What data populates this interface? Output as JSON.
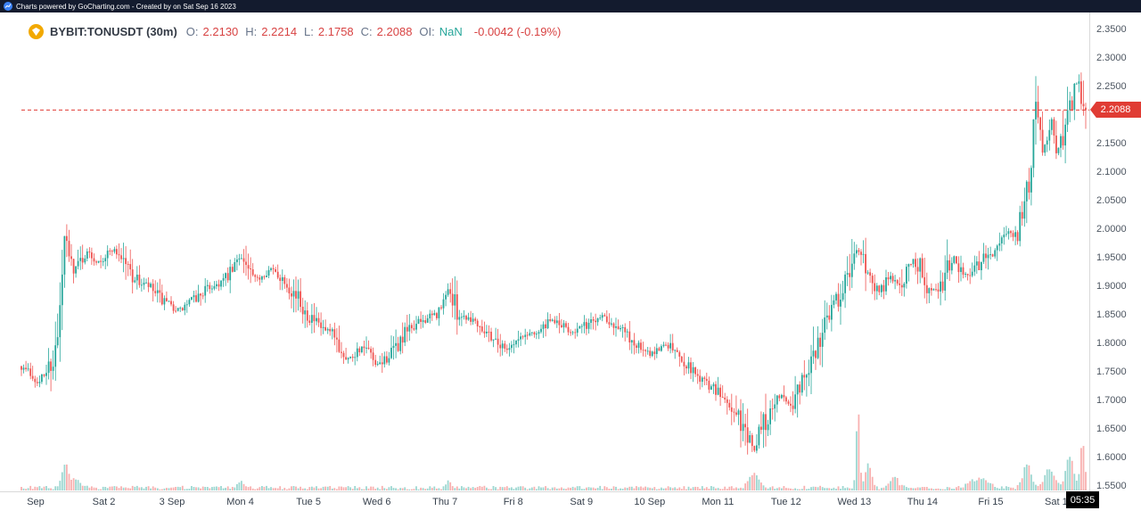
{
  "topbar": {
    "text": "Charts powered by GoCharting.com - Created by  on Sat Sep 16 2023",
    "bg": "#131b2e",
    "logo_color": "#3b82f6"
  },
  "header": {
    "symbol": "BYBIT:TONUSDT (30m)",
    "symbol_color": "#333a45",
    "label_color": "#67748a",
    "value_color": "#d84343",
    "fields": [
      {
        "label": "O:",
        "value": "2.2130"
      },
      {
        "label": "H:",
        "value": "2.2214"
      },
      {
        "label": "L:",
        "value": "2.1758"
      },
      {
        "label": "C:",
        "value": "2.2088"
      },
      {
        "label": "OI:",
        "value": "NaN",
        "value_color": "#26a69a"
      }
    ],
    "change": "-0.0042  (-0.19%)",
    "change_color": "#d84343",
    "coin_bg": "#f2a900"
  },
  "price_line": {
    "value": "2.2088",
    "price": 2.2088,
    "color": "#e03c34",
    "tag_bg": "#e03c34",
    "tag_text": "#ffffff"
  },
  "countdown": {
    "text": "05:35",
    "bg": "#000000",
    "fg": "#ffffff"
  },
  "y_axis": {
    "min": 1.55,
    "max": 2.35,
    "step": 0.05,
    "labels": [
      "2.3500",
      "2.3000",
      "2.2500",
      "2.2000",
      "2.1500",
      "2.1000",
      "2.0500",
      "2.0000",
      "1.9500",
      "1.9000",
      "1.8500",
      "1.8000",
      "1.7500",
      "1.7000",
      "1.6500",
      "1.6000",
      "1.5500"
    ]
  },
  "x_axis": {
    "labels": [
      "Sep",
      "Sat 2",
      "3 Sep",
      "Mon 4",
      "Tue 5",
      "Wed 6",
      "Thu 7",
      "Fri 8",
      "Sat 9",
      "10 Sep",
      "Mon 11",
      "Tue 12",
      "Wed 13",
      "Thu 14",
      "Fri 15",
      "Sat 16"
    ]
  },
  "chart_data": {
    "type": "candlestick",
    "title": "BYBIT:TONUSDT (30m)",
    "symbol": "BYBIT:TONUSDT",
    "interval": "30m",
    "x_range": [
      "Sep 1 2023",
      "Sep 16 2023"
    ],
    "ylim": [
      1.55,
      2.35
    ],
    "grid": false,
    "up_color": "#26a69a",
    "down_color": "#ef5350",
    "current_ohlc": {
      "open": 2.213,
      "high": 2.2214,
      "low": 2.1758,
      "close": 2.2088,
      "oi": "NaN",
      "change": -0.0042,
      "change_pct": -0.19
    },
    "candle_count": 470,
    "seed": 7,
    "price_path": [
      [
        0.0,
        1.76
      ],
      [
        0.01,
        1.745
      ],
      [
        0.017,
        1.73
      ],
      [
        0.024,
        1.755
      ],
      [
        0.03,
        1.775
      ],
      [
        0.034,
        1.8
      ],
      [
        0.041,
        1.985
      ],
      [
        0.046,
        1.94
      ],
      [
        0.05,
        1.93
      ],
      [
        0.057,
        1.95
      ],
      [
        0.063,
        1.96
      ],
      [
        0.07,
        1.945
      ],
      [
        0.078,
        1.95
      ],
      [
        0.085,
        1.965
      ],
      [
        0.09,
        1.96
      ],
      [
        0.097,
        1.945
      ],
      [
        0.104,
        1.92
      ],
      [
        0.112,
        1.905
      ],
      [
        0.119,
        1.9
      ],
      [
        0.127,
        1.885
      ],
      [
        0.135,
        1.87
      ],
      [
        0.143,
        1.862
      ],
      [
        0.15,
        1.858
      ],
      [
        0.158,
        1.872
      ],
      [
        0.165,
        1.88
      ],
      [
        0.173,
        1.895
      ],
      [
        0.18,
        1.9
      ],
      [
        0.188,
        1.908
      ],
      [
        0.195,
        1.918
      ],
      [
        0.2,
        1.93
      ],
      [
        0.206,
        1.958
      ],
      [
        0.212,
        1.93
      ],
      [
        0.22,
        1.91
      ],
      [
        0.227,
        1.922
      ],
      [
        0.234,
        1.93
      ],
      [
        0.241,
        1.92
      ],
      [
        0.248,
        1.91
      ],
      [
        0.256,
        1.89
      ],
      [
        0.263,
        1.868
      ],
      [
        0.27,
        1.85
      ],
      [
        0.278,
        1.832
      ],
      [
        0.286,
        1.82
      ],
      [
        0.293,
        1.812
      ],
      [
        0.3,
        1.79
      ],
      [
        0.308,
        1.772
      ],
      [
        0.315,
        1.788
      ],
      [
        0.322,
        1.792
      ],
      [
        0.328,
        1.775
      ],
      [
        0.333,
        1.758
      ],
      [
        0.34,
        1.77
      ],
      [
        0.347,
        1.78
      ],
      [
        0.355,
        1.8
      ],
      [
        0.362,
        1.82
      ],
      [
        0.37,
        1.832
      ],
      [
        0.377,
        1.84
      ],
      [
        0.384,
        1.846
      ],
      [
        0.39,
        1.85
      ],
      [
        0.396,
        1.862
      ],
      [
        0.401,
        1.9
      ],
      [
        0.406,
        1.868
      ],
      [
        0.412,
        1.85
      ],
      [
        0.42,
        1.845
      ],
      [
        0.427,
        1.84
      ],
      [
        0.435,
        1.825
      ],
      [
        0.442,
        1.812
      ],
      [
        0.449,
        1.8
      ],
      [
        0.455,
        1.79
      ],
      [
        0.462,
        1.8
      ],
      [
        0.47,
        1.81
      ],
      [
        0.477,
        1.818
      ],
      [
        0.485,
        1.82
      ],
      [
        0.492,
        1.83
      ],
      [
        0.5,
        1.84
      ],
      [
        0.508,
        1.83
      ],
      [
        0.515,
        1.82
      ],
      [
        0.523,
        1.825
      ],
      [
        0.531,
        1.832
      ],
      [
        0.538,
        1.842
      ],
      [
        0.546,
        1.85
      ],
      [
        0.553,
        1.84
      ],
      [
        0.561,
        1.83
      ],
      [
        0.568,
        1.815
      ],
      [
        0.576,
        1.8
      ],
      [
        0.583,
        1.788
      ],
      [
        0.591,
        1.78
      ],
      [
        0.598,
        1.79
      ],
      [
        0.606,
        1.8
      ],
      [
        0.613,
        1.788
      ],
      [
        0.621,
        1.772
      ],
      [
        0.628,
        1.758
      ],
      [
        0.636,
        1.742
      ],
      [
        0.644,
        1.73
      ],
      [
        0.651,
        1.72
      ],
      [
        0.659,
        1.705
      ],
      [
        0.666,
        1.69
      ],
      [
        0.674,
        1.668
      ],
      [
        0.681,
        1.64
      ],
      [
        0.687,
        1.615
      ],
      [
        0.691,
        1.628
      ],
      [
        0.695,
        1.65
      ],
      [
        0.699,
        1.668
      ],
      [
        0.705,
        1.69
      ],
      [
        0.711,
        1.71
      ],
      [
        0.717,
        1.7
      ],
      [
        0.723,
        1.69
      ],
      [
        0.729,
        1.715
      ],
      [
        0.734,
        1.74
      ],
      [
        0.74,
        1.765
      ],
      [
        0.746,
        1.79
      ],
      [
        0.752,
        1.825
      ],
      [
        0.758,
        1.858
      ],
      [
        0.764,
        1.872
      ],
      [
        0.768,
        1.88
      ],
      [
        0.773,
        1.9
      ],
      [
        0.778,
        1.92
      ],
      [
        0.783,
        1.95
      ],
      [
        0.786,
        1.968
      ],
      [
        0.79,
        1.945
      ],
      [
        0.796,
        1.928
      ],
      [
        0.801,
        1.905
      ],
      [
        0.806,
        1.89
      ],
      [
        0.811,
        1.905
      ],
      [
        0.816,
        1.918
      ],
      [
        0.821,
        1.905
      ],
      [
        0.826,
        1.898
      ],
      [
        0.831,
        1.925
      ],
      [
        0.836,
        1.948
      ],
      [
        0.841,
        1.94
      ],
      [
        0.846,
        1.93
      ],
      [
        0.851,
        1.905
      ],
      [
        0.856,
        1.892
      ],
      [
        0.861,
        1.9
      ],
      [
        0.866,
        1.91
      ],
      [
        0.871,
        1.935
      ],
      [
        0.876,
        1.955
      ],
      [
        0.881,
        1.932
      ],
      [
        0.886,
        1.918
      ],
      [
        0.891,
        1.925
      ],
      [
        0.896,
        1.93
      ],
      [
        0.901,
        1.94
      ],
      [
        0.906,
        1.95
      ],
      [
        0.911,
        1.96
      ],
      [
        0.917,
        1.968
      ],
      [
        0.922,
        1.98
      ],
      [
        0.927,
        1.988
      ],
      [
        0.932,
        1.995
      ],
      [
        0.937,
        2.0
      ],
      [
        0.942,
        2.04
      ],
      [
        0.947,
        2.08
      ],
      [
        0.95,
        2.16
      ],
      [
        0.953,
        2.235
      ],
      [
        0.957,
        2.18
      ],
      [
        0.96,
        2.13
      ],
      [
        0.963,
        2.16
      ],
      [
        0.967,
        2.19
      ],
      [
        0.97,
        2.165
      ],
      [
        0.973,
        2.14
      ],
      [
        0.977,
        2.16
      ],
      [
        0.98,
        2.18
      ],
      [
        0.983,
        2.205
      ],
      [
        0.987,
        2.23
      ],
      [
        0.99,
        2.245
      ],
      [
        0.993,
        2.258
      ],
      [
        0.996,
        2.235
      ],
      [
        1.0,
        2.2088
      ]
    ],
    "volume_spikes": [
      [
        0.041,
        26,
        0.004
      ],
      [
        0.05,
        9,
        0.006
      ],
      [
        0.206,
        8,
        0.003
      ],
      [
        0.401,
        7,
        0.003
      ],
      [
        0.688,
        16,
        0.006
      ],
      [
        0.786,
        92,
        0.0022
      ],
      [
        0.796,
        26,
        0.004
      ],
      [
        0.82,
        13,
        0.005
      ],
      [
        0.9,
        10,
        0.012
      ],
      [
        0.945,
        28,
        0.005
      ],
      [
        0.966,
        22,
        0.006
      ],
      [
        0.985,
        36,
        0.005
      ],
      [
        0.997,
        52,
        0.003
      ]
    ]
  }
}
